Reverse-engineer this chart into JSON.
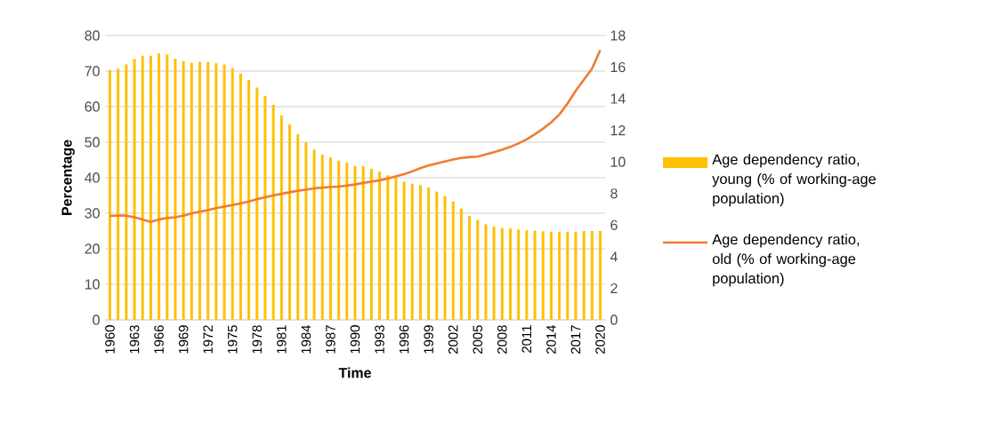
{
  "chart_data": {
    "type": "bar",
    "xlabel": "Time",
    "ylabel": "Percentage",
    "categories": [
      "1960",
      null,
      null,
      "1963",
      null,
      null,
      "1966",
      null,
      null,
      "1969",
      null,
      null,
      "1972",
      null,
      null,
      "1975",
      null,
      null,
      "1978",
      null,
      null,
      "1981",
      null,
      null,
      "1984",
      null,
      null,
      "1987",
      null,
      null,
      "1990",
      null,
      null,
      "1993",
      null,
      null,
      "1996",
      null,
      null,
      "1999",
      null,
      null,
      "2002",
      null,
      null,
      "2005",
      null,
      null,
      "2008",
      null,
      null,
      "2011",
      null,
      null,
      "2014",
      null,
      null,
      "2017",
      null,
      null,
      "2020"
    ],
    "series": [
      {
        "name": "Age dependency ratio, young (% of working-age population)",
        "type": "bar",
        "color": "#ffc000",
        "values": [
          70.3,
          70.7,
          71.9,
          73.4,
          74.3,
          74.3,
          75.0,
          74.7,
          73.5,
          72.8,
          72.3,
          72.6,
          72.5,
          72.2,
          71.8,
          70.9,
          69.3,
          67.5,
          65.4,
          63.0,
          60.5,
          57.5,
          55.0,
          52.2,
          50.0,
          47.9,
          46.5,
          45.7,
          44.8,
          44.2,
          43.3,
          43.3,
          42.5,
          41.7,
          40.7,
          40.0,
          38.9,
          38.3,
          37.9,
          37.3,
          36.1,
          34.8,
          33.3,
          31.3,
          29.3,
          28.1,
          26.9,
          26.3,
          25.9,
          25.7,
          25.4,
          25.2,
          25.1,
          24.9,
          24.8,
          24.8,
          24.8,
          24.8,
          25.0,
          25.0,
          25.0
        ]
      },
      {
        "name": "Age dependency ratio, old (% of working-age population)",
        "type": "line",
        "axis": "y2",
        "color": "#ed7d31",
        "values": [
          6.58,
          6.6,
          6.6,
          6.5,
          6.35,
          6.2,
          6.35,
          6.45,
          6.5,
          6.6,
          6.73,
          6.85,
          6.95,
          7.07,
          7.17,
          7.27,
          7.37,
          7.5,
          7.63,
          7.76,
          7.87,
          7.98,
          8.08,
          8.17,
          8.25,
          8.33,
          8.37,
          8.41,
          8.44,
          8.5,
          8.57,
          8.67,
          8.75,
          8.83,
          8.95,
          9.08,
          9.23,
          9.4,
          9.6,
          9.77,
          9.9,
          10.03,
          10.15,
          10.25,
          10.3,
          10.34,
          10.48,
          10.62,
          10.77,
          10.95,
          11.17,
          11.43,
          11.75,
          12.1,
          12.5,
          13.0,
          13.7,
          14.5,
          15.2,
          15.9,
          17.07
        ]
      }
    ],
    "ylim": [
      0,
      80
    ],
    "yticks": [
      0,
      10,
      20,
      30,
      40,
      50,
      60,
      70,
      80
    ],
    "y2lim": [
      0,
      18
    ],
    "y2ticks": [
      0,
      2,
      4,
      6,
      8,
      10,
      12,
      14,
      16,
      18
    ],
    "grid": "y",
    "legend": "right"
  }
}
